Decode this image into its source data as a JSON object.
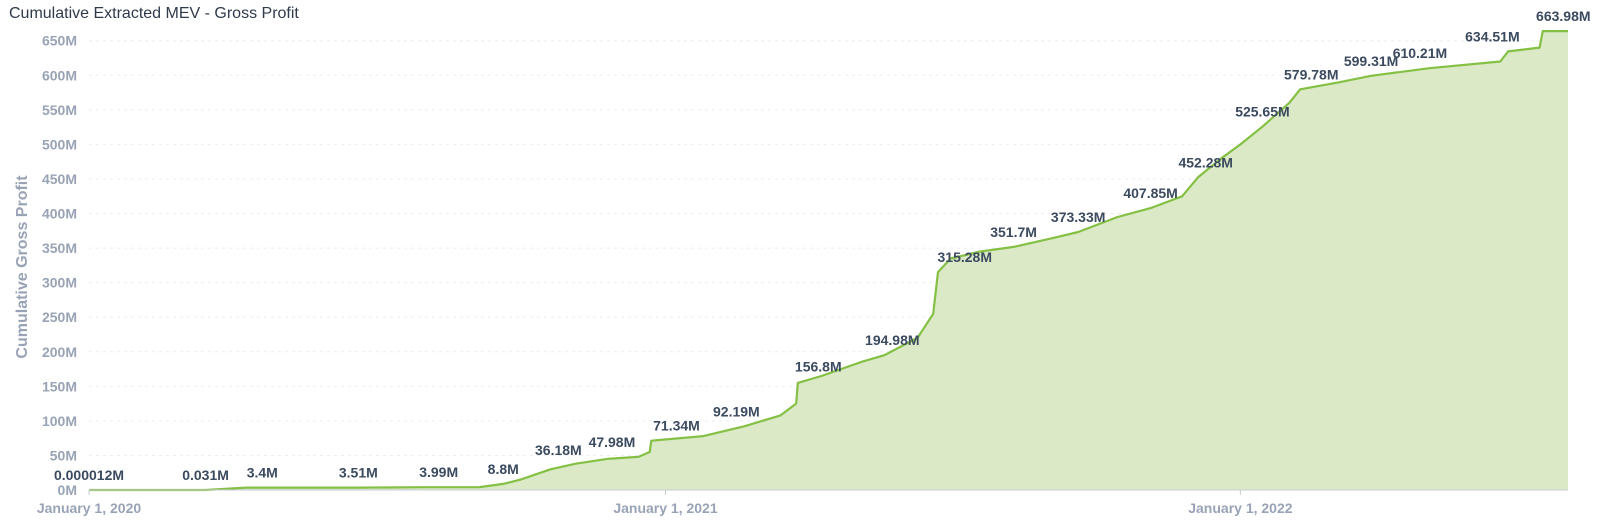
{
  "chart_data": {
    "type": "area",
    "title": "Cumulative Extracted MEV - Gross Profit",
    "xlabel": "",
    "ylabel": "Cumulative Gross Profit",
    "xlim": [
      "2020-01-01",
      "2022-07-28"
    ],
    "ylim": [
      0,
      680
    ],
    "y_ticks": [
      {
        "value": 0,
        "label": "0M"
      },
      {
        "value": 50,
        "label": "50M"
      },
      {
        "value": 100,
        "label": "100M"
      },
      {
        "value": 150,
        "label": "150M"
      },
      {
        "value": 200,
        "label": "200M"
      },
      {
        "value": 250,
        "label": "250M"
      },
      {
        "value": 300,
        "label": "300M"
      },
      {
        "value": 350,
        "label": "350M"
      },
      {
        "value": 400,
        "label": "400M"
      },
      {
        "value": 450,
        "label": "450M"
      },
      {
        "value": 500,
        "label": "500M"
      },
      {
        "value": 550,
        "label": "550M"
      },
      {
        "value": 600,
        "label": "600M"
      },
      {
        "value": 650,
        "label": "650M"
      }
    ],
    "x_ticks": [
      {
        "date": "2020-01-01",
        "label": "January 1, 2020"
      },
      {
        "date": "2021-01-01",
        "label": "January 1, 2021"
      },
      {
        "date": "2022-01-01",
        "label": "January 1, 2022"
      }
    ],
    "grid": true,
    "legend": "none",
    "colors": {
      "line": "#84c044",
      "fill": "#dbe9c6"
    },
    "series": [
      {
        "points": [
          {
            "date": "2020-01-01",
            "value": 1.2e-05
          },
          {
            "date": "2020-03-15",
            "value": 0.031
          },
          {
            "date": "2020-04-10",
            "value": 3.4
          },
          {
            "date": "2020-06-20",
            "value": 3.51
          },
          {
            "date": "2020-08-01",
            "value": 3.99
          },
          {
            "date": "2020-09-05",
            "value": 4.2
          },
          {
            "date": "2020-09-20",
            "value": 8.8
          },
          {
            "date": "2020-10-01",
            "value": 15
          },
          {
            "date": "2020-10-20",
            "value": 30
          },
          {
            "date": "2020-11-05",
            "value": 38
          },
          {
            "date": "2020-11-25",
            "value": 45
          },
          {
            "date": "2020-12-15",
            "value": 48
          },
          {
            "date": "2020-12-22",
            "value": 55
          },
          {
            "date": "2020-12-23",
            "value": 71.34
          },
          {
            "date": "2021-01-25",
            "value": 78
          },
          {
            "date": "2021-02-20",
            "value": 92.19
          },
          {
            "date": "2021-03-15",
            "value": 108
          },
          {
            "date": "2021-03-25",
            "value": 125
          },
          {
            "date": "2021-03-26",
            "value": 155
          },
          {
            "date": "2021-04-10",
            "value": 165
          },
          {
            "date": "2021-05-05",
            "value": 185
          },
          {
            "date": "2021-05-20",
            "value": 194.98
          },
          {
            "date": "2021-06-10",
            "value": 220
          },
          {
            "date": "2021-06-20",
            "value": 255
          },
          {
            "date": "2021-06-23",
            "value": 315.28
          },
          {
            "date": "2021-07-01",
            "value": 335
          },
          {
            "date": "2021-07-20",
            "value": 345
          },
          {
            "date": "2021-08-10",
            "value": 351.7
          },
          {
            "date": "2021-09-05",
            "value": 365
          },
          {
            "date": "2021-09-20",
            "value": 373.33
          },
          {
            "date": "2021-10-15",
            "value": 395
          },
          {
            "date": "2021-11-05",
            "value": 407.85
          },
          {
            "date": "2021-11-25",
            "value": 425
          },
          {
            "date": "2021-12-05",
            "value": 452.28
          },
          {
            "date": "2021-12-20",
            "value": 480
          },
          {
            "date": "2022-01-01",
            "value": 500
          },
          {
            "date": "2022-01-15",
            "value": 525.65
          },
          {
            "date": "2022-02-01",
            "value": 560
          },
          {
            "date": "2022-02-08",
            "value": 579.78
          },
          {
            "date": "2022-03-05",
            "value": 590
          },
          {
            "date": "2022-03-25",
            "value": 599.31
          },
          {
            "date": "2022-05-01",
            "value": 610.21
          },
          {
            "date": "2022-06-15",
            "value": 620
          },
          {
            "date": "2022-06-20",
            "value": 634.51
          },
          {
            "date": "2022-07-10",
            "value": 640
          },
          {
            "date": "2022-07-12",
            "value": 663.98
          },
          {
            "date": "2022-07-28",
            "value": 663.98
          }
        ],
        "data_labels": [
          {
            "date": "2020-01-01",
            "value": 1.2e-05,
            "label": "0.000012M"
          },
          {
            "date": "2020-03-15",
            "value": 0.031,
            "label": "0.031M"
          },
          {
            "date": "2020-04-20",
            "value": 3.4,
            "label": "3.4M"
          },
          {
            "date": "2020-06-20",
            "value": 3.51,
            "label": "3.51M"
          },
          {
            "date": "2020-08-10",
            "value": 3.99,
            "label": "3.99M"
          },
          {
            "date": "2020-09-20",
            "value": 8.8,
            "label": "8.8M"
          },
          {
            "date": "2020-10-25",
            "value": 36.18,
            "label": "36.18M"
          },
          {
            "date": "2020-11-28",
            "value": 47.98,
            "label": "47.98M"
          },
          {
            "date": "2021-01-08",
            "value": 71.34,
            "label": "71.34M"
          },
          {
            "date": "2021-02-15",
            "value": 92.19,
            "label": "92.19M"
          },
          {
            "date": "2021-04-08",
            "value": 156.8,
            "label": "156.8M"
          },
          {
            "date": "2021-05-25",
            "value": 194.98,
            "label": "194.98M"
          },
          {
            "date": "2021-07-10",
            "value": 315.28,
            "label": "315.28M"
          },
          {
            "date": "2021-08-10",
            "value": 351.7,
            "label": "351.7M"
          },
          {
            "date": "2021-09-20",
            "value": 373.33,
            "label": "373.33M"
          },
          {
            "date": "2021-11-05",
            "value": 407.85,
            "label": "407.85M"
          },
          {
            "date": "2021-12-10",
            "value": 452.28,
            "label": "452.28M"
          },
          {
            "date": "2022-01-15",
            "value": 525.65,
            "label": "525.65M"
          },
          {
            "date": "2022-02-15",
            "value": 579.78,
            "label": "579.78M"
          },
          {
            "date": "2022-03-25",
            "value": 599.31,
            "label": "599.31M"
          },
          {
            "date": "2022-04-25",
            "value": 610.21,
            "label": "610.21M"
          },
          {
            "date": "2022-06-10",
            "value": 634.51,
            "label": "634.51M"
          },
          {
            "date": "2022-07-25",
            "value": 663.98,
            "label": "663.98M"
          }
        ]
      }
    ]
  }
}
